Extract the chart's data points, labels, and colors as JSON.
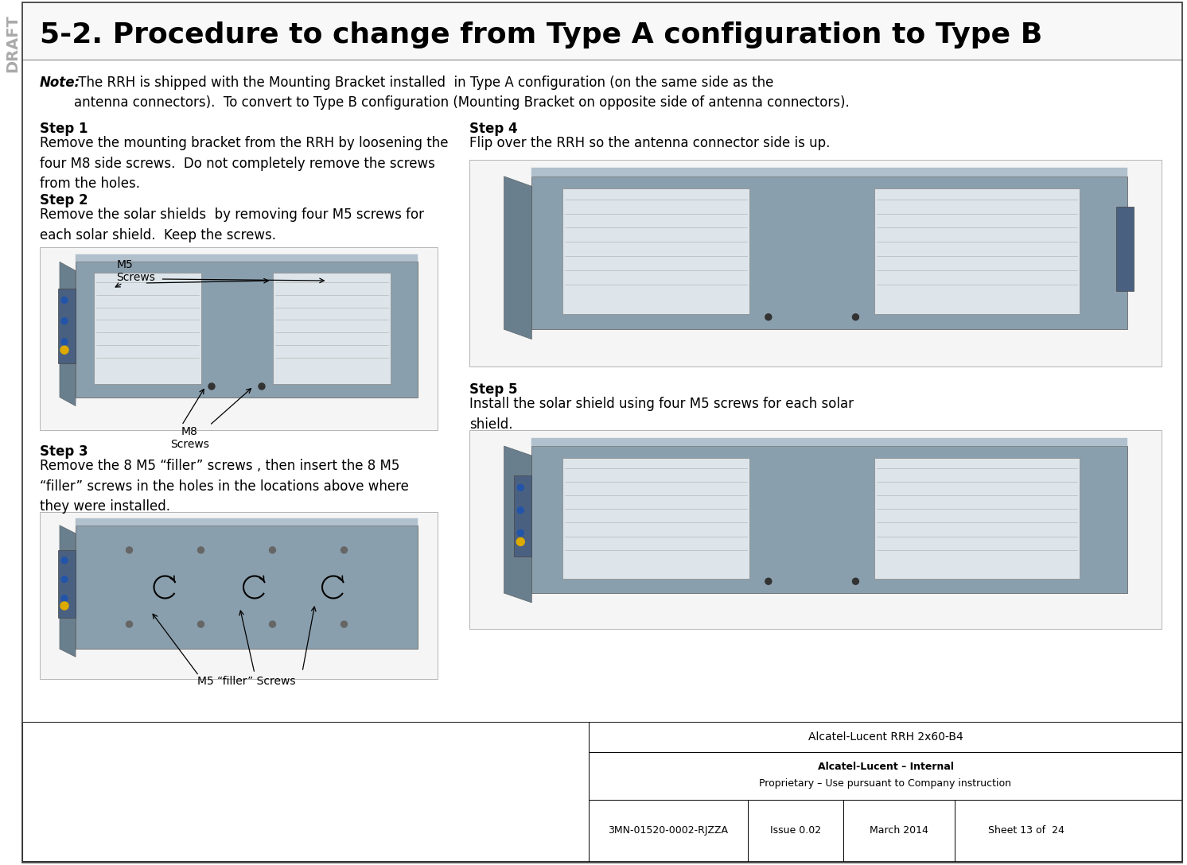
{
  "title": "5-2. Procedure to change from Type A configuration to Type B",
  "note_bold": "Note:",
  "note_text": " The RRH is shipped with the Mounting Bracket installed  in Type A configuration (on the same side as the\nantenna connectors).  To convert to Type B configuration (Mounting Bracket on opposite side of antenna connectors).",
  "step1_title": "Step 1",
  "step1_text": "Remove the mounting bracket from the RRH by loosening the\nfour M8 side screws.  Do not completely remove the screws\nfrom the holes.",
  "step2_title": "Step 2",
  "step2_text": "Remove the solar shields  by removing four M5 screws for\neach solar shield.  Keep the screws.",
  "step3_title": "Step 3",
  "step3_text": "Remove the 8 M5 “filler” screws , then insert the 8 M5\n“filler” screws in the holes in the locations above where\nthey were installed.",
  "step4_title": "Step 4",
  "step4_text": "Flip over the RRH so the antenna connector side is up.",
  "step5_title": "Step 5",
  "step5_text": "Install the solar shield using four M5 screws for each solar\nshield.",
  "label_m5_screws": "M5\nScrews",
  "label_m8_screws": "M8\nScrews",
  "label_m5_filler": "M5 “filler” Screws",
  "footer_title": "Alcatel-Lucent RRH 2x60-B4",
  "footer_bold": "Alcatel-Lucent – Internal",
  "footer_prop": "Proprietary – Use pursuant to Company instruction",
  "footer_doc": "3MN-01520-0002-RJZZA",
  "footer_issue": "Issue 0.02",
  "footer_date": "March 2014",
  "footer_sheet": "Sheet 13 of  24",
  "draft_text": "DRAFT",
  "bg_color": "#ffffff",
  "title_color": "#000000",
  "border_color": "#000000",
  "draft_color": "#aaaaaa",
  "step_title_color": "#000000",
  "note_color": "#000000",
  "footer_bg": "#ffffff",
  "title_fontsize": 26,
  "note_fontsize": 12,
  "step_title_fontsize": 12,
  "step_text_fontsize": 12,
  "label_fontsize": 10,
  "footer_fontsize": 9,
  "draft_fontsize": 14
}
